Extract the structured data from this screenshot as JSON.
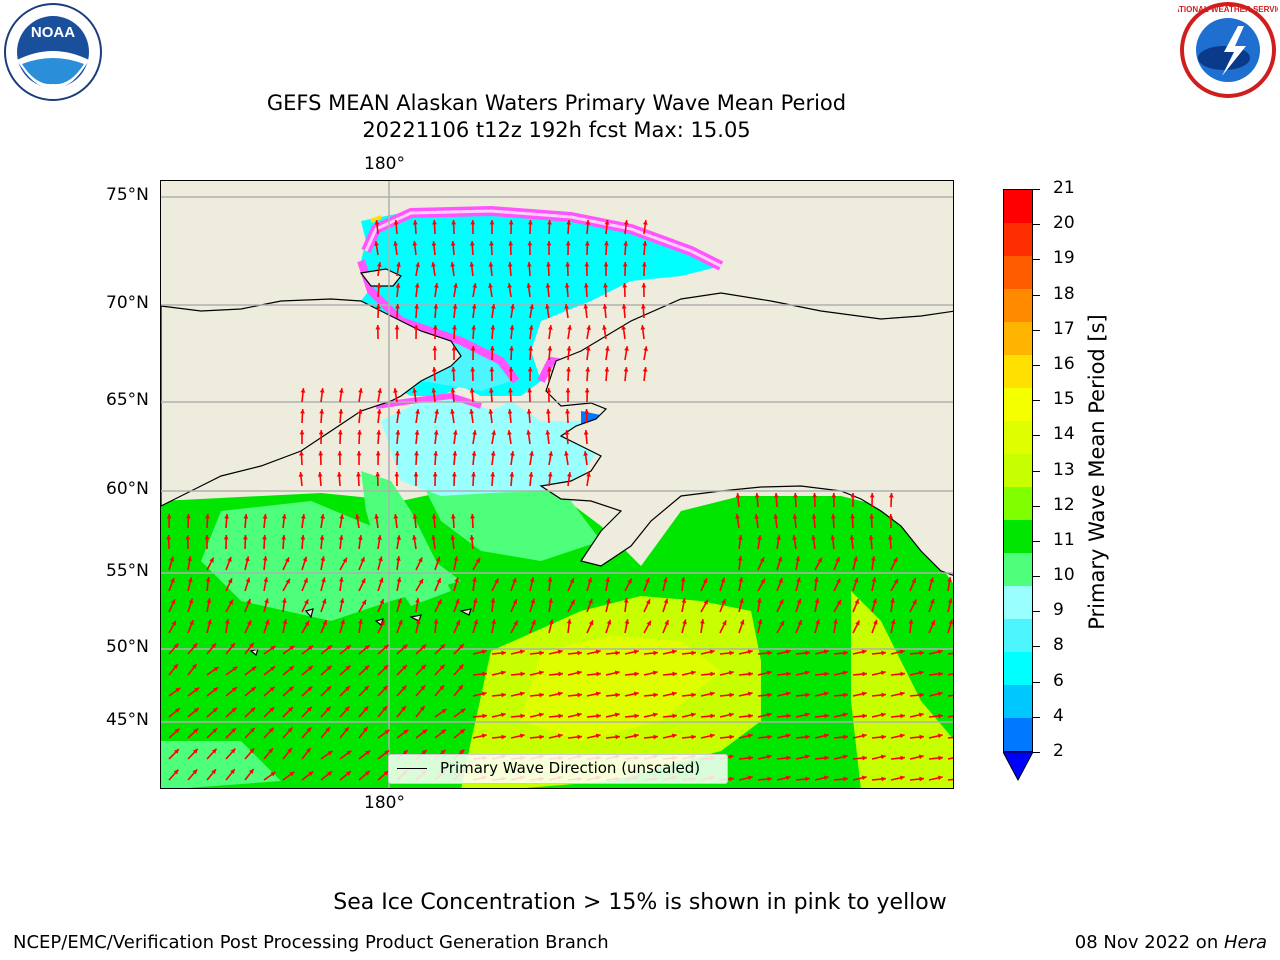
{
  "header": {
    "title_line1": "GEFS MEAN Alaskan Waters Primary Wave Mean Period",
    "title_line2": "20221106 t12z 192h fcst   Max: 15.05"
  },
  "logos": {
    "noaa": "NOAA",
    "nws_ring_text": "NATIONAL WEATHER SERVICE"
  },
  "map": {
    "lon_top_label": "180°",
    "lon_bottom_label": "180°",
    "lat_labels": [
      "75°N",
      "70°N",
      "65°N",
      "60°N",
      "55°N",
      "50°N",
      "45°N"
    ],
    "legend_label": "Primary Wave Direction (unscaled)",
    "colors": {
      "land": "#eeecdc",
      "arrow": "#ff0000",
      "grid": "#b0b0b0"
    }
  },
  "colorbar": {
    "title": "Primary Wave Mean Period [s]",
    "ticks": [
      "21",
      "20",
      "19",
      "18",
      "17",
      "16",
      "15",
      "14",
      "13",
      "12",
      "11",
      "10",
      "9",
      "8",
      "6",
      "4",
      "2"
    ],
    "colors": [
      "#ff0000",
      "#ff2e00",
      "#ff5c00",
      "#ff8a00",
      "#ffb400",
      "#ffe000",
      "#f5ff00",
      "#dfff00",
      "#c8ff00",
      "#7fff00",
      "#00e600",
      "#4dff7a",
      "#9affff",
      "#4df5ff",
      "#00ffff",
      "#00c8ff",
      "#0078ff"
    ],
    "extend_color": "#0000ff"
  },
  "note": "Sea Ice Concentration > 15% is shown in pink to yellow",
  "footer": {
    "left": "NCEP/EMC/Verification Post Processing Product Generation Branch",
    "right_date": "08 Nov 2022 on ",
    "right_host": "Hera"
  }
}
